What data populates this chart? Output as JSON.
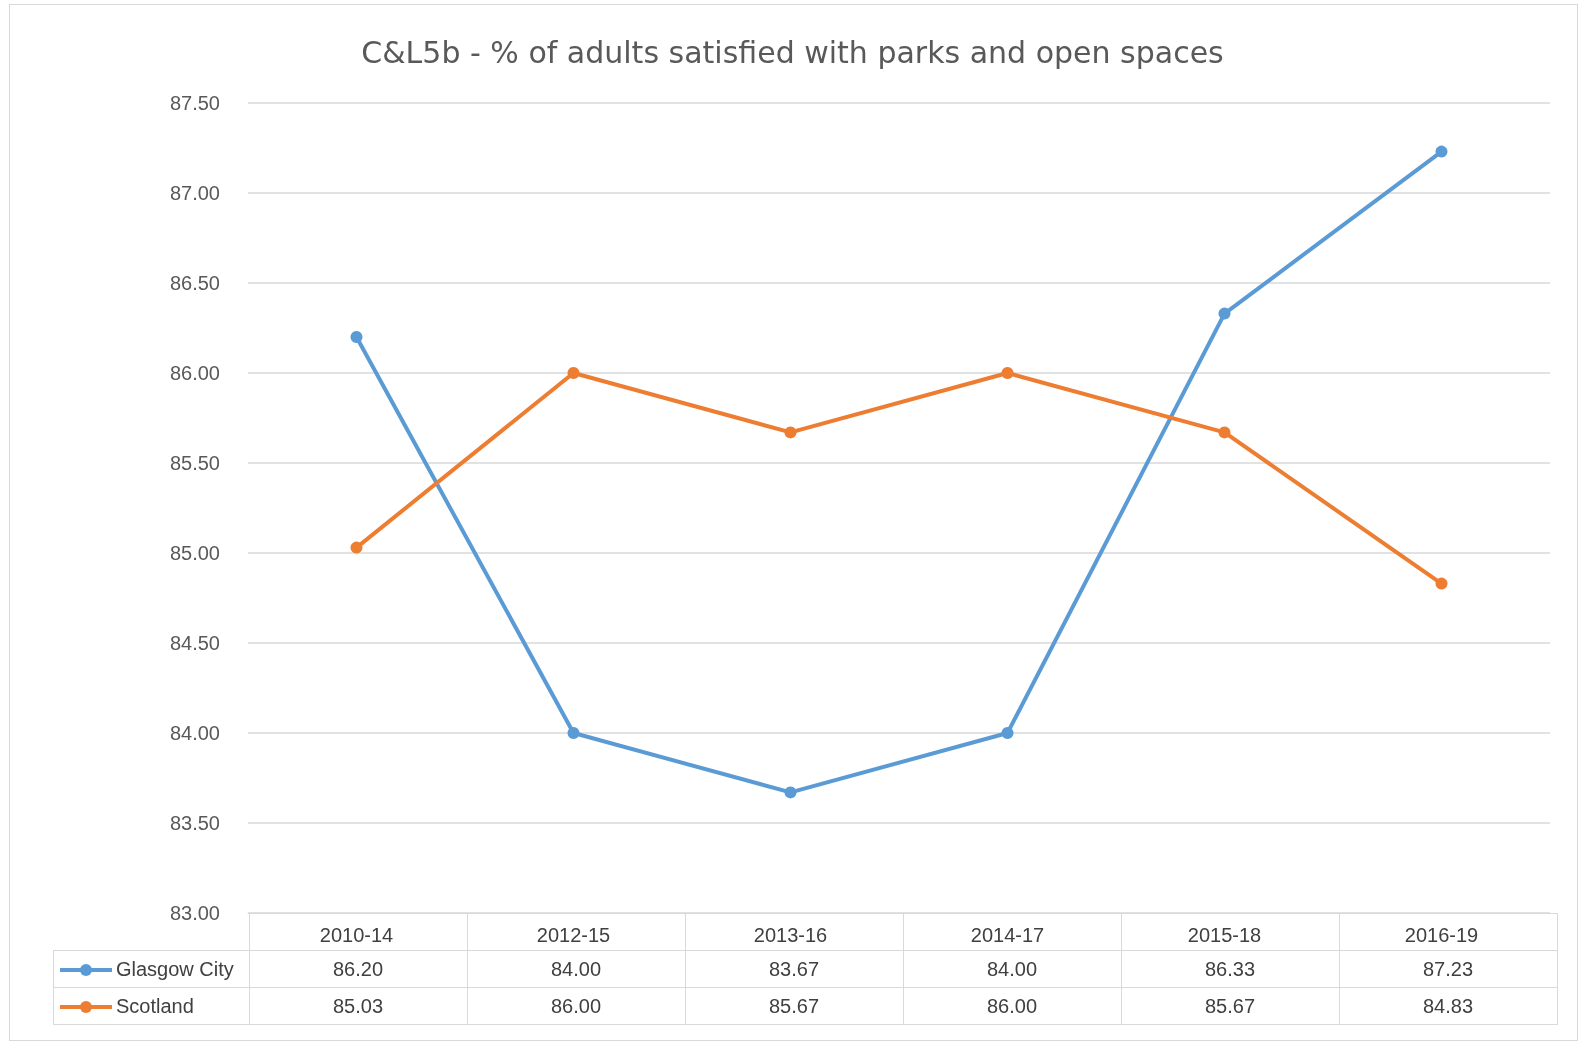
{
  "chart_data": {
    "type": "line",
    "title": "C&L5b - % of adults satisfied with parks and open spaces",
    "categories": [
      "2010-14",
      "2012-15",
      "2013-16",
      "2014-17",
      "2015-18",
      "2016-19"
    ],
    "series": [
      {
        "name": "Glasgow City",
        "color": "#5b9bd5",
        "values": [
          86.2,
          84.0,
          83.67,
          84.0,
          86.33,
          87.23
        ],
        "value_labels": [
          "86.20",
          "84.00",
          "83.67",
          "84.00",
          "86.33",
          "87.23"
        ]
      },
      {
        "name": "Scotland",
        "color": "#ed7d31",
        "values": [
          85.03,
          86.0,
          85.67,
          86.0,
          85.67,
          84.83
        ],
        "value_labels": [
          "85.03",
          "86.00",
          "85.67",
          "86.00",
          "85.67",
          "84.83"
        ]
      }
    ],
    "ylim": [
      83,
      87.5
    ],
    "yticks": [
      {
        "value": 83,
        "label": "83.00"
      },
      {
        "value": 83.5,
        "label": "83.50"
      },
      {
        "value": 84,
        "label": "84.00"
      },
      {
        "value": 84.5,
        "label": "84.50"
      },
      {
        "value": 85,
        "label": "85.00"
      },
      {
        "value": 85.5,
        "label": "85.50"
      },
      {
        "value": 86,
        "label": "86.00"
      },
      {
        "value": 86.5,
        "label": "86.50"
      },
      {
        "value": 87,
        "label": "87.00"
      },
      {
        "value": 87.5,
        "label": "87.50"
      }
    ],
    "grid": "y",
    "legend": "bottom left",
    "marker": "circle",
    "line_style": "solid"
  }
}
